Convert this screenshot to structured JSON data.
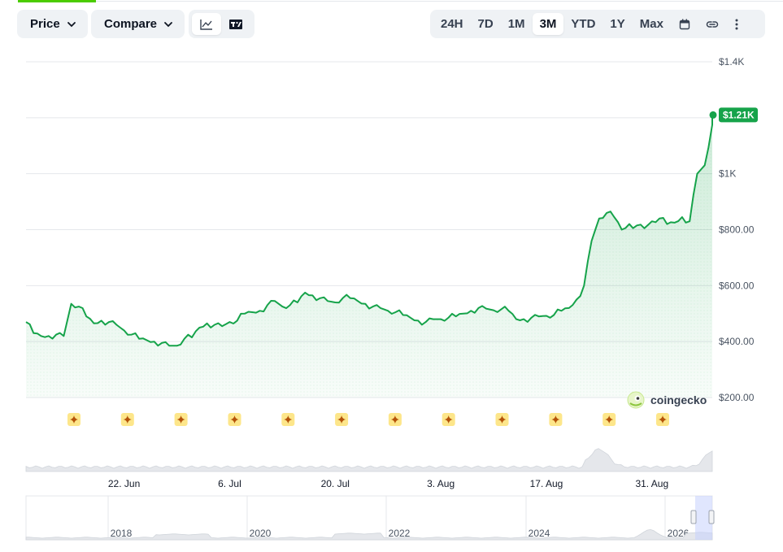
{
  "toolbar": {
    "price_label": "Price",
    "compare_label": "Compare",
    "chart_types": [
      {
        "icon": "line-chart-icon",
        "active": true
      },
      {
        "icon": "tradingview-icon",
        "active": false
      }
    ],
    "ranges": [
      "24H",
      "7D",
      "1M",
      "3M",
      "YTD",
      "1Y",
      "Max"
    ],
    "active_range": "3M",
    "extra_icons": [
      "calendar-icon",
      "link-icon",
      "more-vertical-icon"
    ]
  },
  "watermark": "coingecko",
  "current_price_label": "$1.21K",
  "colors": {
    "line": "#16a34a",
    "accent_green": "#16a34a",
    "marker": "#fcd34d"
  },
  "navigator": {
    "year_labels": [
      "2018",
      "2020",
      "2022",
      "2024",
      "2026"
    ]
  },
  "event_markers_count": 12,
  "chart_data": {
    "type": "area",
    "title": "",
    "xlabel": "",
    "ylabel": "",
    "ylim": [
      200,
      1400
    ],
    "y_ticks": [
      "$200.00",
      "$400.00",
      "$600.00",
      "$800.00",
      "$1K",
      "$1.2K",
      "$1.4K"
    ],
    "y_tick_values": [
      200,
      400,
      600,
      800,
      1000,
      1200,
      1400
    ],
    "x_tick_labels": [
      "22. Jun",
      "6. Jul",
      "20. Jul",
      "3. Aug",
      "17. Aug",
      "31. Aug"
    ],
    "x_tick_days": [
      13,
      27,
      41,
      55,
      69,
      83
    ],
    "x_start_date": "2025-06-09",
    "series": [
      {
        "x_day": [
          0,
          1,
          2,
          3,
          4,
          5,
          6,
          7,
          8,
          9,
          10,
          11,
          12,
          13,
          14,
          15,
          16,
          17,
          18,
          19,
          20,
          21,
          22,
          23,
          24,
          25,
          26,
          27,
          28,
          29,
          30,
          31,
          32,
          33,
          34,
          35,
          36,
          37,
          38,
          39,
          40,
          41,
          42,
          43,
          44,
          45,
          46,
          47,
          48,
          49,
          50,
          51,
          52,
          53,
          54,
          55,
          56,
          57,
          58,
          59,
          60,
          61,
          62,
          63,
          64,
          65,
          66,
          67,
          68,
          69,
          70,
          71,
          72,
          73,
          74,
          75,
          76,
          77,
          78,
          79,
          80,
          81,
          82,
          83,
          84,
          85,
          86,
          87,
          88,
          89,
          90,
          91
        ],
        "values": [
          470,
          430,
          420,
          420,
          425,
          420,
          535,
          525,
          490,
          465,
          475,
          470,
          460,
          440,
          425,
          410,
          405,
          400,
          395,
          385,
          385,
          410,
          415,
          450,
          465,
          460,
          455,
          470,
          475,
          500,
          505,
          510,
          530,
          545,
          525,
          530,
          540,
          575,
          565,
          555,
          545,
          540,
          555,
          555,
          545,
          535,
          525,
          520,
          510,
          505,
          495,
          485,
          475,
          470,
          480,
          480,
          485,
          490,
          500,
          510,
          520,
          518,
          512,
          515,
          510,
          480,
          480,
          485,
          490,
          492,
          495,
          510,
          520,
          550,
          600,
          760,
          840,
          860,
          845,
          800,
          820,
          815,
          805,
          830,
          840,
          820,
          825,
          845,
          830,
          1000,
          1030,
          1175
        ]
      }
    ],
    "current_value": 1210
  }
}
